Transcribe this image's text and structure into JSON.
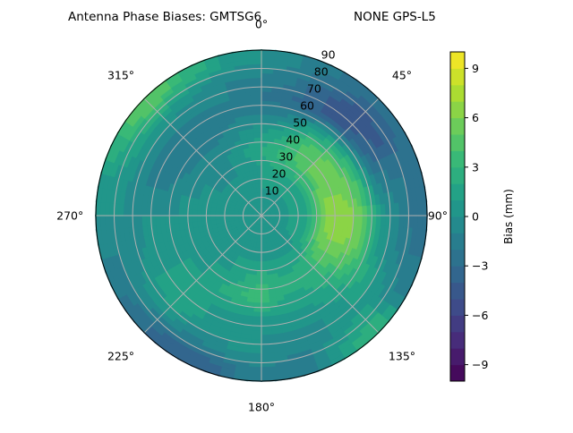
{
  "chart_data": {
    "type": "heatmap",
    "subtype": "polar-contourf",
    "title_left": "Antenna Phase Biases: GMTSG6",
    "title_right": "NONE GPS-L5",
    "colormap": "viridis",
    "azimuth_tick_labels": [
      "0°",
      "45°",
      "90°",
      "135°",
      "180°",
      "225°",
      "270°",
      "315°"
    ],
    "radial_tick_labels": [
      "10",
      "20",
      "30",
      "40",
      "50",
      "60",
      "70",
      "80",
      "90"
    ],
    "radial_range": [
      0,
      90
    ],
    "grid": true,
    "colorbar": {
      "label": "Bias (mm)",
      "range": [
        -10,
        10
      ],
      "level_step": 1,
      "tick_labels": [
        "−9",
        "−6",
        "−3",
        "0",
        "3",
        "6",
        "9"
      ],
      "tick_values": [
        -9,
        -6,
        -3,
        0,
        3,
        6,
        9
      ]
    },
    "azimuth_deg": [
      0,
      15,
      30,
      45,
      60,
      75,
      90,
      105,
      120,
      135,
      150,
      165,
      180,
      195,
      210,
      225,
      240,
      255,
      270,
      285,
      300,
      315,
      330,
      345
    ],
    "zenith_deg": [
      5,
      15,
      25,
      35,
      45,
      55,
      65,
      75,
      85
    ],
    "bias_mm": [
      [
        0,
        0,
        0,
        0,
        0,
        0,
        0,
        0,
        0,
        0,
        0,
        0,
        0,
        0,
        0,
        0,
        0,
        0,
        0,
        0,
        0,
        0,
        0,
        0
      ],
      [
        1,
        1,
        1,
        1,
        1,
        1,
        1,
        1,
        1,
        0,
        0,
        0,
        0,
        0,
        0,
        0,
        0,
        0,
        0,
        0,
        0,
        0,
        0,
        0
      ],
      [
        1,
        2,
        2,
        2,
        2,
        2,
        2,
        2,
        2,
        1,
        1,
        1,
        1,
        1,
        1,
        0,
        0,
        0,
        1,
        1,
        0,
        0,
        0,
        0
      ],
      [
        2,
        3,
        4,
        5,
        5,
        6,
        6,
        6,
        5,
        3,
        2,
        2,
        3,
        2,
        1,
        1,
        0,
        1,
        1,
        0,
        0,
        -1,
        0,
        1
      ],
      [
        1,
        2,
        4,
        5,
        6,
        6,
        7,
        7,
        5,
        3,
        2,
        2,
        4,
        3,
        2,
        1,
        1,
        1,
        0,
        0,
        -1,
        -1,
        -1,
        0
      ],
      [
        -1,
        -1,
        1,
        2,
        3,
        4,
        5,
        5,
        4,
        2,
        1,
        1,
        1,
        1,
        1,
        1,
        1,
        0,
        0,
        -1,
        -2,
        -2,
        -2,
        -1
      ],
      [
        -2,
        -3,
        -4,
        -4,
        -3,
        -1,
        1,
        1,
        2,
        1,
        0,
        0,
        0,
        0,
        1,
        2,
        1,
        0,
        0,
        -1,
        -1,
        -1,
        -1,
        -1
      ],
      [
        -1,
        -2,
        -4,
        -5,
        -4,
        -2,
        -1,
        -1,
        0,
        1,
        0,
        -1,
        0,
        0,
        -1,
        0,
        0,
        -1,
        0,
        0,
        1,
        1,
        0,
        -1
      ],
      [
        0,
        -1,
        -2,
        -3,
        -3,
        -2,
        -3,
        -2,
        -1,
        3,
        1,
        -2,
        -1,
        -3,
        -4,
        -3,
        -2,
        -1,
        0,
        1,
        3,
        5,
        3,
        1
      ]
    ]
  }
}
